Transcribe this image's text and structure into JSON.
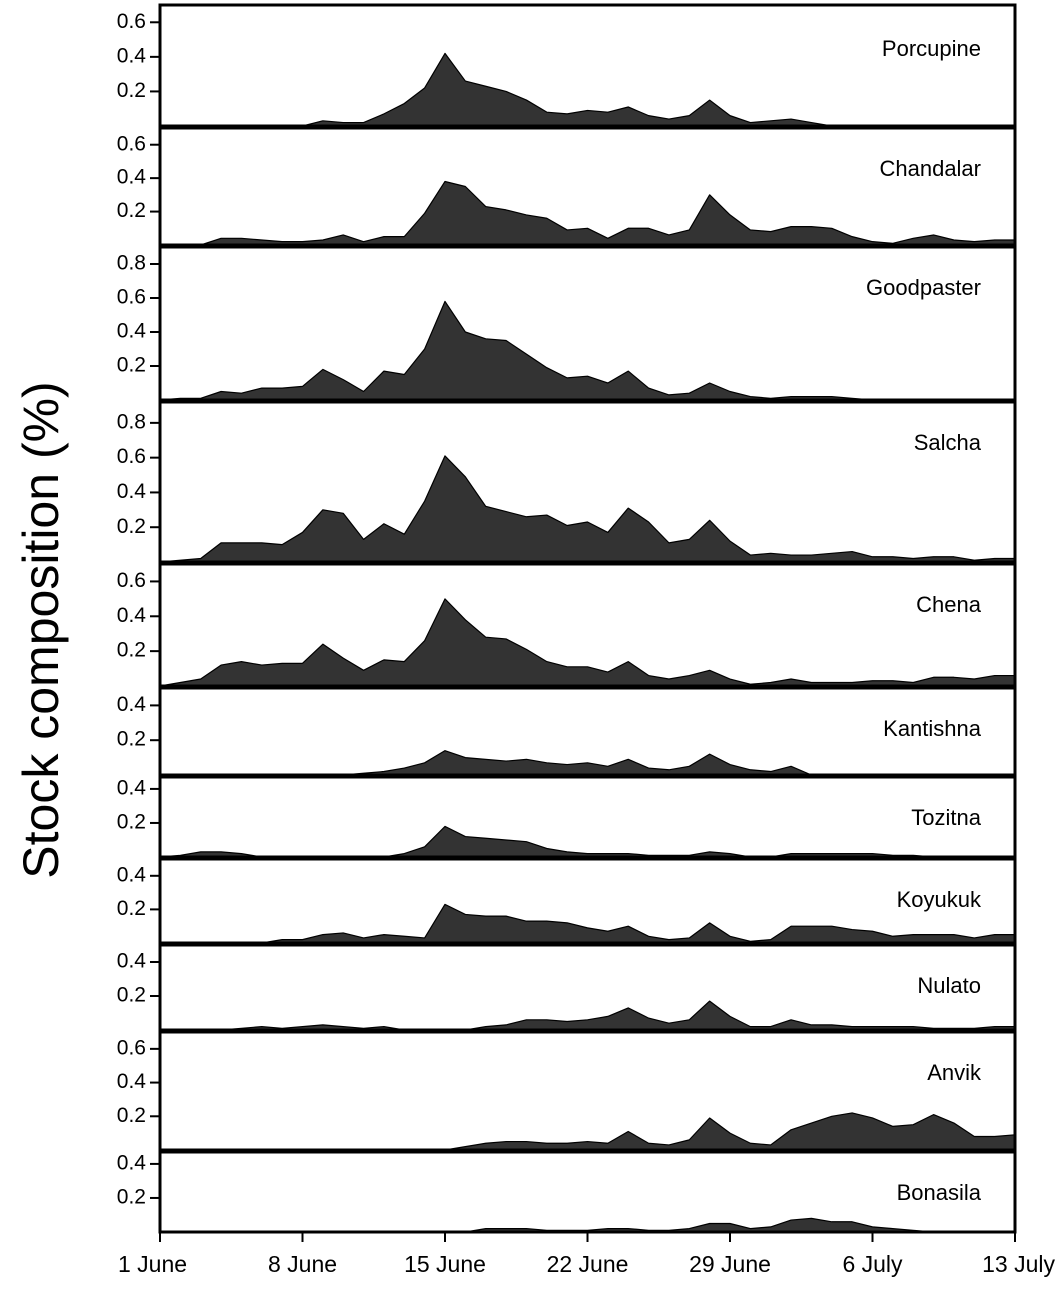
{
  "chart_data": {
    "type": "area",
    "ylabel": "Stock composition (%)",
    "color": "#333333",
    "x": [
      1,
      2,
      3,
      4,
      5,
      6,
      7,
      8,
      9,
      10,
      11,
      12,
      13,
      14,
      15,
      16,
      17,
      18,
      19,
      20,
      21,
      22,
      23,
      24,
      25,
      26,
      27,
      28,
      29,
      30,
      31,
      32,
      33,
      34,
      35,
      36,
      37,
      38,
      39,
      40,
      41,
      42,
      43
    ],
    "xlim": [
      1,
      43
    ],
    "xticks": [
      {
        "value": 1,
        "label": "1 June"
      },
      {
        "value": 8,
        "label": "8 June"
      },
      {
        "value": 15,
        "label": "15 June"
      },
      {
        "value": 22,
        "label": "22 June"
      },
      {
        "value": 29,
        "label": "29 June"
      },
      {
        "value": 36,
        "label": "6 July"
      },
      {
        "value": 43,
        "label": "13 July"
      }
    ],
    "panels": [
      {
        "name": "Porcupine",
        "ylim": [
          0,
          0.7
        ],
        "yticks": [
          0.2,
          0.4,
          0.6
        ],
        "values": [
          0,
          0,
          0,
          0,
          0,
          0,
          0,
          0,
          0.03,
          0.02,
          0.02,
          0.07,
          0.13,
          0.22,
          0.42,
          0.26,
          0.23,
          0.2,
          0.15,
          0.08,
          0.07,
          0.09,
          0.08,
          0.11,
          0.06,
          0.04,
          0.06,
          0.15,
          0.06,
          0.02,
          0.03,
          0.04,
          0.02,
          0,
          0,
          0,
          0,
          0,
          0,
          0,
          0,
          0,
          0
        ]
      },
      {
        "name": "Chandalar",
        "ylim": [
          0,
          0.7
        ],
        "yticks": [
          0.2,
          0.4,
          0.6
        ],
        "values": [
          0,
          0,
          0,
          0.04,
          0.04,
          0.03,
          0.02,
          0.02,
          0.03,
          0.06,
          0.02,
          0.05,
          0.05,
          0.19,
          0.38,
          0.35,
          0.23,
          0.21,
          0.18,
          0.16,
          0.09,
          0.1,
          0.04,
          0.1,
          0.1,
          0.06,
          0.09,
          0.3,
          0.18,
          0.09,
          0.08,
          0.11,
          0.11,
          0.1,
          0.05,
          0.02,
          0.01,
          0.04,
          0.06,
          0.03,
          0.02,
          0.03,
          0.03
        ]
      },
      {
        "name": "Goodpaster",
        "ylim": [
          0,
          0.9
        ],
        "yticks": [
          0.2,
          0.4,
          0.6,
          0.8
        ],
        "values": [
          0,
          0.01,
          0.01,
          0.05,
          0.04,
          0.07,
          0.07,
          0.08,
          0.18,
          0.12,
          0.05,
          0.17,
          0.15,
          0.3,
          0.58,
          0.4,
          0.36,
          0.35,
          0.27,
          0.19,
          0.13,
          0.14,
          0.1,
          0.17,
          0.07,
          0.03,
          0.04,
          0.1,
          0.05,
          0.02,
          0.01,
          0.02,
          0.02,
          0.02,
          0.01,
          0,
          0,
          0,
          0,
          0,
          0,
          0,
          0
        ]
      },
      {
        "name": "Salcha",
        "ylim": [
          0,
          0.92
        ],
        "yticks": [
          0.2,
          0.4,
          0.6,
          0.8
        ],
        "values": [
          0,
          0.01,
          0.02,
          0.11,
          0.11,
          0.11,
          0.1,
          0.17,
          0.3,
          0.28,
          0.13,
          0.22,
          0.16,
          0.35,
          0.61,
          0.49,
          0.32,
          0.29,
          0.26,
          0.27,
          0.21,
          0.23,
          0.17,
          0.31,
          0.23,
          0.11,
          0.13,
          0.24,
          0.12,
          0.04,
          0.05,
          0.04,
          0.04,
          0.05,
          0.06,
          0.03,
          0.03,
          0.02,
          0.03,
          0.03,
          0.01,
          0.02,
          0.02
        ]
      },
      {
        "name": "Chena",
        "ylim": [
          0,
          0.7
        ],
        "yticks": [
          0.2,
          0.4,
          0.6
        ],
        "values": [
          0,
          0.02,
          0.04,
          0.12,
          0.14,
          0.12,
          0.13,
          0.13,
          0.24,
          0.16,
          0.09,
          0.15,
          0.14,
          0.26,
          0.5,
          0.38,
          0.28,
          0.27,
          0.21,
          0.14,
          0.11,
          0.11,
          0.08,
          0.14,
          0.06,
          0.04,
          0.06,
          0.09,
          0.04,
          0.01,
          0.02,
          0.04,
          0.02,
          0.02,
          0.02,
          0.03,
          0.03,
          0.02,
          0.05,
          0.05,
          0.04,
          0.06,
          0.06
        ]
      },
      {
        "name": "Kantishna",
        "ylim": [
          0,
          0.5
        ],
        "yticks": [
          0.2,
          0.4
        ],
        "values": [
          0,
          0,
          0,
          0,
          0,
          0,
          0,
          0,
          0,
          0,
          0.01,
          0.02,
          0.04,
          0.07,
          0.14,
          0.1,
          0.09,
          0.08,
          0.09,
          0.07,
          0.06,
          0.07,
          0.05,
          0.09,
          0.04,
          0.03,
          0.05,
          0.12,
          0.06,
          0.03,
          0.02,
          0.05,
          0,
          0,
          0,
          0,
          0,
          0,
          0,
          0,
          0,
          0,
          0
        ]
      },
      {
        "name": "Tozitna",
        "ylim": [
          0,
          0.47
        ],
        "yticks": [
          0.2,
          0.4
        ],
        "values": [
          0,
          0.01,
          0.03,
          0.03,
          0.02,
          0,
          0,
          0,
          0,
          0,
          0,
          0,
          0.02,
          0.06,
          0.18,
          0.12,
          0.11,
          0.1,
          0.09,
          0.05,
          0.03,
          0.02,
          0.02,
          0.02,
          0.01,
          0.01,
          0.01,
          0.03,
          0.02,
          0,
          0,
          0.02,
          0.02,
          0.02,
          0.02,
          0.02,
          0.01,
          0.01,
          0,
          0,
          0,
          0,
          0
        ]
      },
      {
        "name": "Koyukuk",
        "ylim": [
          0,
          0.5
        ],
        "yticks": [
          0.2,
          0.4
        ],
        "values": [
          0,
          0,
          0,
          0,
          0,
          0,
          0.02,
          0.02,
          0.05,
          0.06,
          0.03,
          0.05,
          0.04,
          0.03,
          0.23,
          0.17,
          0.16,
          0.16,
          0.13,
          0.13,
          0.12,
          0.09,
          0.07,
          0.1,
          0.04,
          0.02,
          0.03,
          0.12,
          0.04,
          0.01,
          0.02,
          0.1,
          0.1,
          0.1,
          0.08,
          0.07,
          0.04,
          0.05,
          0.05,
          0.05,
          0.03,
          0.05,
          0.05
        ]
      },
      {
        "name": "Nulato",
        "ylim": [
          0,
          0.5
        ],
        "yticks": [
          0.2,
          0.4
        ],
        "values": [
          0,
          0,
          0,
          0,
          0.01,
          0.02,
          0.01,
          0.02,
          0.03,
          0.02,
          0.01,
          0.02,
          0,
          0,
          0,
          0,
          0.02,
          0.03,
          0.06,
          0.06,
          0.05,
          0.06,
          0.08,
          0.13,
          0.07,
          0.04,
          0.06,
          0.17,
          0.08,
          0.02,
          0.02,
          0.06,
          0.03,
          0.03,
          0.02,
          0.02,
          0.02,
          0.02,
          0.01,
          0.01,
          0.01,
          0.02,
          0.02
        ]
      },
      {
        "name": "Anvik",
        "ylim": [
          0,
          0.7
        ],
        "yticks": [
          0.2,
          0.4,
          0.6
        ],
        "values": [
          0,
          0,
          0,
          0,
          0,
          0,
          0,
          0,
          0,
          0,
          0,
          0,
          0,
          0,
          0,
          0.02,
          0.04,
          0.05,
          0.05,
          0.04,
          0.04,
          0.05,
          0.04,
          0.11,
          0.04,
          0.03,
          0.06,
          0.19,
          0.1,
          0.04,
          0.03,
          0.12,
          0.16,
          0.2,
          0.22,
          0.19,
          0.14,
          0.15,
          0.21,
          0.16,
          0.08,
          0.08,
          0.09
        ]
      },
      {
        "name": "Bonasila",
        "ylim": [
          0,
          0.47
        ],
        "yticks": [
          0.2,
          0.4
        ],
        "values": [
          0,
          0,
          0,
          0,
          0,
          0,
          0,
          0,
          0,
          0,
          0,
          0,
          0,
          0,
          0,
          0,
          0.02,
          0.02,
          0.02,
          0.01,
          0.01,
          0.01,
          0.02,
          0.02,
          0.01,
          0.01,
          0.02,
          0.05,
          0.05,
          0.02,
          0.03,
          0.07,
          0.08,
          0.06,
          0.06,
          0.03,
          0.02,
          0.01,
          0,
          0,
          0,
          0,
          0
        ]
      }
    ]
  }
}
